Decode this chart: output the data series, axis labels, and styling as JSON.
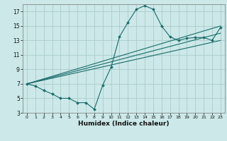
{
  "xlabel": "Humidex (Indice chaleur)",
  "background_color": "#cce8e8",
  "grid_color": "#aacccc",
  "line_color": "#1a6b6b",
  "xlim": [
    -0.5,
    23.5
  ],
  "ylim": [
    3,
    18
  ],
  "xticks": [
    0,
    1,
    2,
    3,
    4,
    5,
    6,
    7,
    8,
    9,
    10,
    11,
    12,
    13,
    14,
    15,
    16,
    17,
    18,
    19,
    20,
    21,
    22,
    23
  ],
  "yticks": [
    3,
    5,
    7,
    9,
    11,
    13,
    15,
    17
  ],
  "main_line": {
    "x": [
      0,
      1,
      2,
      3,
      4,
      5,
      6,
      7,
      8,
      9,
      10,
      11,
      12,
      13,
      14,
      15,
      16,
      17,
      18,
      19,
      20,
      21,
      22,
      23
    ],
    "y": [
      7.0,
      6.7,
      6.1,
      5.6,
      5.0,
      5.0,
      4.4,
      4.4,
      3.5,
      6.8,
      9.3,
      13.5,
      15.5,
      17.3,
      17.8,
      17.3,
      15.0,
      13.5,
      13.0,
      13.3,
      13.4,
      13.4,
      13.0,
      14.8
    ]
  },
  "straight_lines": [
    {
      "x": [
        0,
        23
      ],
      "y": [
        7.0,
        15.0
      ]
    },
    {
      "x": [
        0,
        23
      ],
      "y": [
        7.0,
        14.0
      ]
    },
    {
      "x": [
        0,
        23
      ],
      "y": [
        7.0,
        13.0
      ]
    }
  ]
}
